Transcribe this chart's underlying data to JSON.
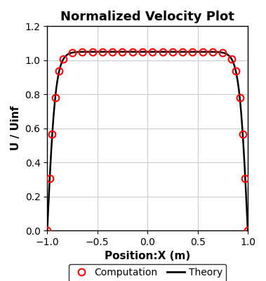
{
  "title": "Normalized Velocity Plot",
  "xlabel": "Position:X (m)",
  "ylabel": "U / Uinf",
  "xlim": [
    -1,
    1
  ],
  "ylim": [
    0,
    1.2
  ],
  "yticks": [
    0,
    0.2,
    0.4,
    0.6,
    0.8,
    1.0,
    1.2
  ],
  "xticks": [
    -1.0,
    -0.5,
    0.0,
    0.5,
    1.0
  ],
  "theory_color": "#000000",
  "computation_color": "#ff0000",
  "background_color": "#ffffff",
  "grid_color": "#cccccc",
  "title_fontsize": 13,
  "label_fontsize": 11,
  "tick_fontsize": 10,
  "legend_fontsize": 10,
  "peak_velocity": 1.05,
  "tanh_k": 12.0,
  "comp_x_mid": [
    -0.75,
    -0.65,
    -0.55,
    -0.45,
    -0.35,
    -0.25,
    -0.15,
    -0.05,
    0.05,
    0.15,
    0.25,
    0.35,
    0.45,
    0.55,
    0.65,
    0.75
  ],
  "comp_x_edge_left": [
    -1.0,
    -0.975,
    -0.95,
    -0.92,
    -0.88,
    -0.84
  ],
  "comp_x_edge_right": [
    0.84,
    0.88,
    0.92,
    0.95,
    0.975,
    1.0
  ]
}
